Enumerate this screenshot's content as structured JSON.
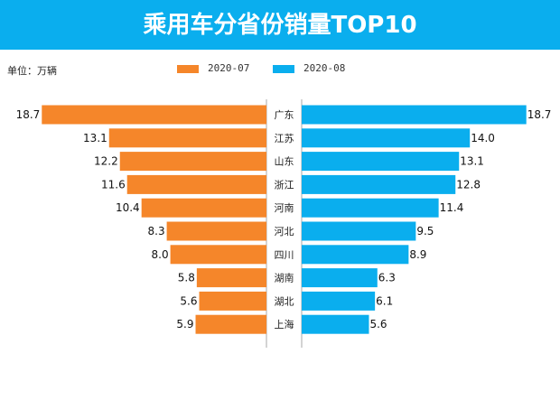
{
  "chart_data": {
    "type": "bar",
    "title": "乘用车分省份销量TOP10",
    "unit_label": "单位：万辆",
    "categories": [
      "广东",
      "江苏",
      "山东",
      "浙江",
      "河南",
      "河北",
      "四川",
      "湖南",
      "湖北",
      "上海"
    ],
    "series": [
      {
        "name": "2020-07",
        "color": "#f5862a",
        "values": [
          18.7,
          13.1,
          12.2,
          11.6,
          10.4,
          8.3,
          8.0,
          5.8,
          5.6,
          5.9
        ]
      },
      {
        "name": "2020-08",
        "color": "#0aaeee",
        "values": [
          18.7,
          14.0,
          13.1,
          12.8,
          11.4,
          9.5,
          8.9,
          6.3,
          6.1,
          5.6
        ]
      }
    ],
    "legend_position": "top-center",
    "grid": false,
    "layout": "butterfly"
  }
}
